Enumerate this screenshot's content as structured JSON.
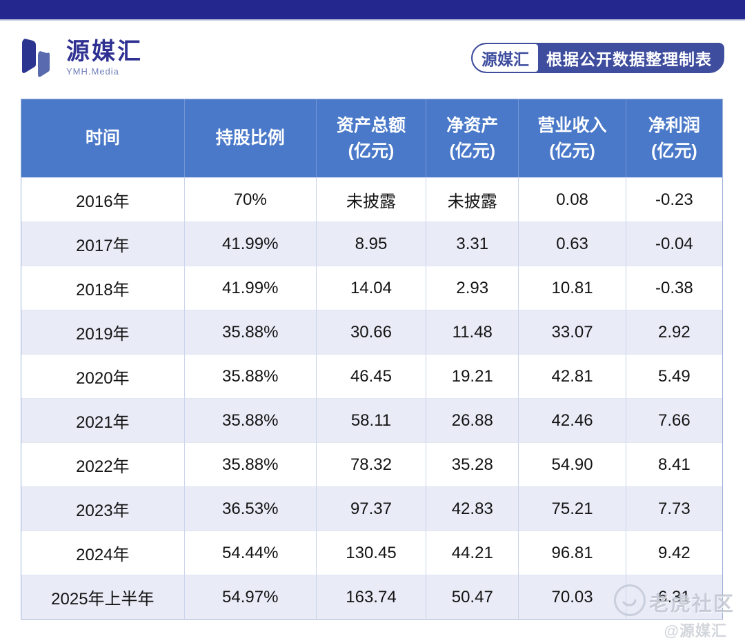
{
  "logo": {
    "name": "源媒汇",
    "subtitle": "YMH.Media"
  },
  "badge": {
    "brand": "源媒汇",
    "text": "根据公开数据整理制表"
  },
  "watermark": {
    "community": "老虎社区",
    "handle": "@源媒汇"
  },
  "colors": {
    "topbar": "#23278E",
    "header_blue": "#4A79C9",
    "alt_row": "#E9EBF7",
    "logo_dark": "#2B3590",
    "logo_light": "#5A6AAE",
    "badge_blue": "#3E4D9E"
  },
  "chart_data": {
    "type": "table",
    "columns": [
      {
        "title": "时间",
        "sub": ""
      },
      {
        "title": "持股比例",
        "sub": ""
      },
      {
        "title": "资产总额",
        "sub": "(亿元)"
      },
      {
        "title": "净资产",
        "sub": "(亿元)"
      },
      {
        "title": "营业收入",
        "sub": "(亿元)"
      },
      {
        "title": "净利润",
        "sub": "(亿元)"
      }
    ],
    "rows": [
      [
        "2016年",
        "70%",
        "未披露",
        "未披露",
        "0.08",
        "-0.23"
      ],
      [
        "2017年",
        "41.99%",
        "8.95",
        "3.31",
        "0.63",
        "-0.04"
      ],
      [
        "2018年",
        "41.99%",
        "14.04",
        "2.93",
        "10.81",
        "-0.38"
      ],
      [
        "2019年",
        "35.88%",
        "30.66",
        "11.48",
        "33.07",
        "2.92"
      ],
      [
        "2020年",
        "35.88%",
        "46.45",
        "19.21",
        "42.81",
        "5.49"
      ],
      [
        "2021年",
        "35.88%",
        "58.11",
        "26.88",
        "42.46",
        "7.66"
      ],
      [
        "2022年",
        "35.88%",
        "78.32",
        "35.28",
        "54.90",
        "8.41"
      ],
      [
        "2023年",
        "36.53%",
        "97.37",
        "42.83",
        "75.21",
        "7.73"
      ],
      [
        "2024年",
        "54.44%",
        "130.45",
        "44.21",
        "96.81",
        "9.42"
      ],
      [
        "2025年上半年",
        "54.97%",
        "163.74",
        "50.47",
        "70.03",
        "6.31"
      ]
    ]
  }
}
